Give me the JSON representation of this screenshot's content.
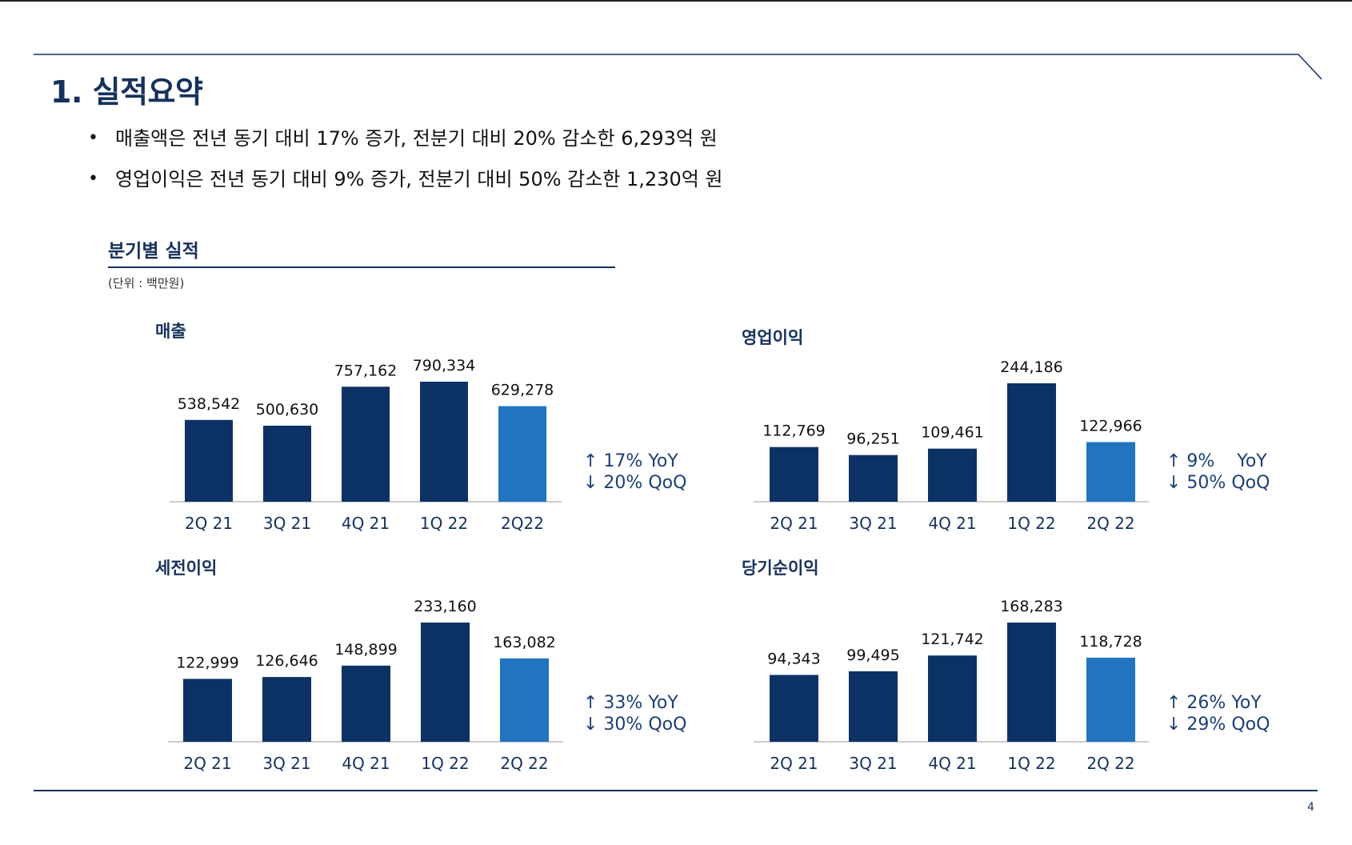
{
  "page": {
    "title": "1. 실적요약",
    "page_number": "4"
  },
  "bullets": [
    "매출액은 전년 동기 대비 17% 증가, 전분기 대비 20% 감소한 6,293억 원",
    "영업이익은 전년 동기 대비 9% 증가, 전분기 대비 50% 감소한 1,230억 원"
  ],
  "section": {
    "title": "분기별 실적",
    "unit": "(단위 : 백만원)"
  },
  "colors": {
    "navy": "#0c3265",
    "highlight": "#2274c0",
    "axis": "#cccccc",
    "title": "#16315c",
    "delta": "#1b3f75"
  },
  "chart_data": [
    {
      "type": "bar",
      "title": "매출",
      "categories": [
        "2Q 21",
        "3Q 21",
        "4Q 21",
        "1Q 22",
        "2Q22"
      ],
      "values": [
        538542,
        500630,
        757162,
        790334,
        629278
      ],
      "value_labels": [
        "538,542",
        "500,630",
        "757,162",
        "790,334",
        "629,278"
      ],
      "highlight_index": 4,
      "yoy": "↑ 17% YoY",
      "qoq": "↓ 20% QoQ",
      "ylim": [
        0,
        790334
      ]
    },
    {
      "type": "bar",
      "title": "영업이익",
      "categories": [
        "2Q 21",
        "3Q 21",
        "4Q 21",
        "1Q 22",
        "2Q 22"
      ],
      "values": [
        112769,
        96251,
        109461,
        244186,
        122966
      ],
      "value_labels": [
        "112,769",
        "96,251",
        "109,461",
        "244,186",
        "122,966"
      ],
      "highlight_index": 4,
      "yoy": "↑ 9%    YoY",
      "qoq": "↓ 50% QoQ",
      "ylim": [
        0,
        244186
      ]
    },
    {
      "type": "bar",
      "title": "세전이익",
      "categories": [
        "2Q 21",
        "3Q 21",
        "4Q 21",
        "1Q 22",
        "2Q 22"
      ],
      "values": [
        122999,
        126646,
        148899,
        233160,
        163082
      ],
      "value_labels": [
        "122,999",
        "126,646",
        "148,899",
        "233,160",
        "163,082"
      ],
      "highlight_index": 4,
      "yoy": "↑ 33% YoY",
      "qoq": "↓ 30% QoQ",
      "ylim": [
        0,
        233160
      ]
    },
    {
      "type": "bar",
      "title": "당기순이익",
      "categories": [
        "2Q 21",
        "3Q 21",
        "4Q 21",
        "1Q 22",
        "2Q 22"
      ],
      "values": [
        94343,
        99495,
        121742,
        168283,
        118728
      ],
      "value_labels": [
        "94,343",
        "99,495",
        "121,742",
        "168,283",
        "118,728"
      ],
      "highlight_index": 4,
      "yoy": "↑ 26% YoY",
      "qoq": "↓ 29% QoQ",
      "ylim": [
        0,
        168283
      ]
    }
  ]
}
